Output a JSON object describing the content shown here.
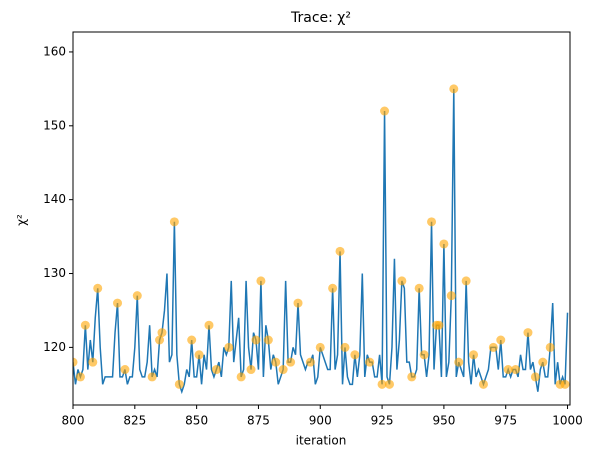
{
  "chart_data": {
    "type": "trace",
    "title": "Trace: χ²",
    "xlabel": "iteration",
    "ylabel": "χ²",
    "xlim": [
      800,
      1001
    ],
    "ylim": [
      112.2,
      162.7
    ],
    "xticks": [
      800,
      825,
      850,
      875,
      900,
      925,
      950,
      975,
      1000
    ],
    "yticks": [
      120,
      130,
      140,
      150,
      160
    ],
    "grid": false,
    "series": [
      {
        "kind": "line",
        "color": "#1f77b4",
        "x": [
          800,
          801,
          802,
          803,
          804,
          805,
          806,
          807,
          808,
          809,
          810,
          811,
          812,
          813,
          814,
          815,
          816,
          817,
          818,
          819,
          820,
          821,
          822,
          823,
          824,
          825,
          826,
          827,
          828,
          829,
          830,
          831,
          832,
          833,
          834,
          835,
          836,
          837,
          838,
          839,
          840,
          841,
          842,
          843,
          844,
          845,
          846,
          847,
          848,
          849,
          850,
          851,
          852,
          853,
          854,
          855,
          856,
          857,
          858,
          859,
          860,
          861,
          862,
          863,
          864,
          865,
          866,
          867,
          868,
          869,
          870,
          871,
          872,
          873,
          874,
          875,
          876,
          877,
          878,
          879,
          880,
          881,
          882,
          883,
          884,
          885,
          886,
          887,
          888,
          889,
          890,
          891,
          892,
          893,
          894,
          895,
          896,
          897,
          898,
          899,
          900,
          901,
          902,
          903,
          904,
          905,
          906,
          907,
          908,
          909,
          910,
          911,
          912,
          913,
          914,
          915,
          916,
          917,
          918,
          919,
          920,
          921,
          922,
          923,
          924,
          925,
          926,
          927,
          928,
          929,
          930,
          931,
          932,
          933,
          934,
          935,
          936,
          937,
          938,
          939,
          940,
          941,
          942,
          943,
          944,
          945,
          946,
          947,
          948,
          949,
          950,
          951,
          952,
          953,
          954,
          955,
          956,
          957,
          958,
          959,
          960,
          961,
          962,
          963,
          964,
          965,
          966,
          967,
          968,
          969,
          970,
          971,
          972,
          973,
          974,
          975,
          976,
          977,
          978,
          979,
          980,
          981,
          982,
          983,
          984,
          985,
          986,
          987,
          988,
          989,
          990,
          991,
          992,
          993,
          994,
          995,
          996,
          997,
          998,
          999,
          1000
        ],
        "values": [
          118,
          115,
          117,
          116,
          117,
          123,
          117,
          121,
          118,
          124,
          128,
          120,
          115,
          116,
          116,
          116,
          116,
          122,
          126,
          116,
          116,
          117,
          115,
          116,
          116,
          120,
          127,
          117,
          116,
          116,
          118,
          123,
          116,
          117,
          116,
          121,
          122,
          125,
          130,
          118,
          119,
          137,
          119,
          115,
          114,
          115,
          117,
          116,
          121,
          116,
          116,
          119,
          115,
          119,
          117,
          123,
          117,
          116,
          117,
          118,
          116,
          120,
          119,
          120,
          129,
          118,
          121,
          124,
          116,
          117,
          129,
          120,
          117,
          122,
          121,
          117,
          129,
          116,
          123,
          121,
          117,
          119,
          118,
          115,
          116,
          117,
          129,
          118,
          118,
          120,
          119,
          126,
          119,
          118,
          117,
          118,
          118,
          119,
          115,
          116,
          120,
          119,
          118,
          117,
          117,
          128,
          117,
          119,
          133,
          115,
          120,
          116,
          115,
          115,
          119,
          116,
          119,
          130,
          116,
          119,
          118,
          118,
          116,
          116,
          119,
          115,
          152,
          116,
          115,
          120,
          132,
          117,
          121,
          129,
          128,
          118,
          118,
          116,
          116,
          117,
          128,
          119,
          119,
          116,
          119,
          137,
          117,
          123,
          123,
          116,
          134,
          116,
          118,
          127,
          155,
          116,
          118,
          117,
          116,
          129,
          118,
          115,
          119,
          116,
          117,
          116,
          115,
          116,
          117,
          120,
          120,
          120,
          117,
          121,
          116,
          116,
          117,
          116,
          117,
          117,
          116,
          119,
          117,
          117,
          122,
          117,
          118,
          116,
          114,
          117,
          118,
          116,
          116,
          120,
          126,
          115,
          118,
          115,
          116,
          115,
          124.7
        ]
      },
      {
        "kind": "scatter",
        "color": "orange",
        "x": [
          800,
          803,
          805,
          808,
          810,
          818,
          821,
          826,
          832,
          835,
          836,
          841,
          843,
          848,
          851,
          855,
          858,
          863,
          868,
          872,
          874,
          876,
          879,
          882,
          885,
          888,
          891,
          896,
          900,
          905,
          908,
          910,
          914,
          920,
          925,
          926,
          928,
          933,
          937,
          940,
          942,
          945,
          947,
          948,
          950,
          953,
          954,
          956,
          959,
          962,
          966,
          970,
          973,
          976,
          979,
          984,
          987,
          990,
          993,
          997,
          999
        ],
        "values": [
          118,
          116,
          123,
          118,
          128,
          126,
          117,
          127,
          116,
          121,
          122,
          137,
          115,
          121,
          119,
          123,
          117,
          120,
          116,
          117,
          121,
          129,
          121,
          118,
          117,
          118,
          126,
          118,
          120,
          128,
          133,
          120,
          119,
          118,
          115,
          152,
          115,
          129,
          116,
          128,
          119,
          137,
          123,
          123,
          134,
          127,
          155,
          118,
          129,
          119,
          115,
          120,
          121,
          117,
          117,
          122,
          116,
          118,
          120,
          115,
          115
        ]
      }
    ]
  }
}
